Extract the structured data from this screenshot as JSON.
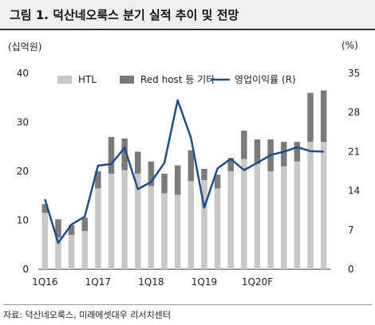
{
  "title": "그림 1. 덕산네오룩스 분기 실적 추이 및 전망",
  "source": "자료: 덕산네오룩스, 미래에셋대우 리서치센터",
  "colors": {
    "htl": "#c8c8c8",
    "other": "#7a7a7a",
    "line": "#1f4e8c"
  },
  "chart_data": {
    "type": "bar",
    "stacked": true,
    "title": "그림 1. 덕산네오룩스 분기 실적 추이 및 전망",
    "ylabel_left": "(십억원)",
    "ylabel_right": "(%)",
    "ylim_left": [
      0,
      40
    ],
    "ylim_right": [
      0,
      35
    ],
    "yticks_left": [
      "0",
      "10",
      "20",
      "30",
      "40"
    ],
    "yticks_right": [
      "0",
      "7",
      "14",
      "21",
      "28",
      "35"
    ],
    "categories": [
      "1Q16",
      "2Q16",
      "3Q16",
      "4Q16",
      "1Q17",
      "2Q17",
      "3Q17",
      "4Q17",
      "1Q18",
      "2Q18",
      "3Q18",
      "4Q18",
      "1Q19",
      "2Q19",
      "3Q19",
      "4Q19",
      "1Q20F",
      "2Q20F",
      "3Q20F",
      "4Q20F",
      "1Q21F",
      "2Q21F"
    ],
    "xtick_labels": [
      {
        "index": 0,
        "label": "1Q16"
      },
      {
        "index": 4,
        "label": "1Q17"
      },
      {
        "index": 8,
        "label": "1Q18"
      },
      {
        "index": 12,
        "label": "1Q19"
      },
      {
        "index": 16,
        "label": "1Q20F"
      }
    ],
    "legend": {
      "placement": "top",
      "labels": [
        "HTL",
        "Red host 등 기타",
        "영업이익률 (R)"
      ]
    },
    "series": [
      {
        "name": "HTL",
        "kind": "bar",
        "values": [
          11.5,
          6.5,
          7.0,
          7.8,
          16.5,
          19.5,
          20.2,
          19.5,
          17.0,
          15.5,
          15.2,
          18.0,
          18.2,
          16.5,
          20.0,
          22.5,
          21.5,
          20.0,
          21.0,
          22.0,
          26.0,
          26.0
        ]
      },
      {
        "name": "Red host 등 기타",
        "kind": "bar",
        "values": [
          1.8,
          3.7,
          2.0,
          2.7,
          3.5,
          7.5,
          6.5,
          4.5,
          5.0,
          4.0,
          6.0,
          6.3,
          2.3,
          2.8,
          2.7,
          5.8,
          5.0,
          6.5,
          5.0,
          4.0,
          10.0,
          10.5
        ]
      },
      {
        "name": "영업이익률 (R)",
        "kind": "line",
        "axis": "right",
        "values": [
          12.5,
          4.7,
          8.0,
          9.4,
          18.5,
          18.8,
          21.7,
          14.3,
          15.6,
          19.0,
          30.2,
          23.5,
          11.0,
          18.0,
          19.7,
          17.7,
          19.0,
          20.4,
          21.0,
          21.8,
          21.1,
          21.0
        ]
      }
    ]
  }
}
